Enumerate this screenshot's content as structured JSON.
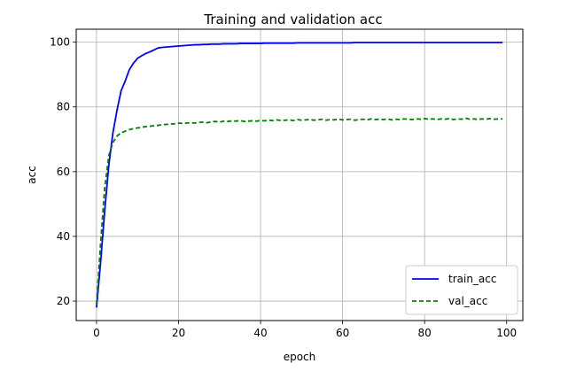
{
  "chart_data": {
    "type": "line",
    "title": "Training and validation acc",
    "xlabel": "epoch",
    "ylabel": "acc",
    "xlim": [
      -4.95,
      103.95
    ],
    "ylim": [
      14,
      104
    ],
    "xticks": [
      0,
      20,
      40,
      60,
      80,
      100
    ],
    "yticks": [
      20,
      40,
      60,
      80,
      100
    ],
    "x_tick_labels": [
      "0",
      "20",
      "40",
      "60",
      "80",
      "100"
    ],
    "y_tick_labels": [
      "20",
      "40",
      "60",
      "80",
      "100"
    ],
    "grid": true,
    "legend_position": "lower-right",
    "series": [
      {
        "name": "train_acc",
        "color": "#0000ff",
        "style": "solid",
        "x": [
          0,
          1,
          2,
          3,
          4,
          5,
          6,
          7,
          8,
          9,
          10,
          11,
          12,
          13,
          14,
          15,
          16,
          17,
          18,
          19,
          20,
          21,
          22,
          23,
          24,
          25,
          26,
          27,
          28,
          29,
          30,
          31,
          32,
          33,
          34,
          35,
          36,
          37,
          38,
          39,
          40,
          41,
          42,
          43,
          44,
          45,
          46,
          47,
          48,
          49,
          50,
          51,
          52,
          53,
          54,
          55,
          56,
          57,
          58,
          59,
          60,
          61,
          62,
          63,
          64,
          65,
          66,
          67,
          68,
          69,
          70,
          71,
          72,
          73,
          74,
          75,
          76,
          77,
          78,
          79,
          80,
          81,
          82,
          83,
          84,
          85,
          86,
          87,
          88,
          89,
          90,
          91,
          92,
          93,
          94,
          95,
          96,
          97,
          98,
          99
        ],
        "values": [
          18,
          32,
          48,
          62,
          72,
          79,
          85,
          88,
          91.5,
          93.5,
          95,
          95.8,
          96.5,
          97,
          97.6,
          98.2,
          98.4,
          98.5,
          98.6,
          98.7,
          98.8,
          98.9,
          99,
          99.1,
          99.2,
          99.2,
          99.3,
          99.3,
          99.4,
          99.4,
          99.4,
          99.5,
          99.5,
          99.5,
          99.5,
          99.6,
          99.6,
          99.6,
          99.6,
          99.6,
          99.6,
          99.7,
          99.7,
          99.7,
          99.7,
          99.7,
          99.7,
          99.7,
          99.7,
          99.8,
          99.8,
          99.8,
          99.8,
          99.8,
          99.8,
          99.8,
          99.8,
          99.8,
          99.8,
          99.8,
          99.8,
          99.8,
          99.8,
          99.9,
          99.9,
          99.9,
          99.9,
          99.9,
          99.9,
          99.9,
          99.9,
          99.9,
          99.9,
          99.9,
          99.9,
          99.9,
          99.9,
          99.9,
          99.9,
          99.9,
          99.9,
          99.9,
          99.9,
          99.9,
          99.9,
          99.9,
          99.9,
          99.9,
          99.9,
          99.9,
          99.9,
          99.9,
          99.9,
          99.9,
          99.9,
          99.9,
          99.9,
          99.9,
          99.9,
          99.9
        ]
      },
      {
        "name": "val_acc",
        "color": "#008000",
        "style": "dashed",
        "x": [
          0,
          1,
          2,
          3,
          4,
          5,
          6,
          7,
          8,
          9,
          10,
          11,
          12,
          13,
          14,
          15,
          16,
          17,
          18,
          19,
          20,
          21,
          22,
          23,
          24,
          25,
          26,
          27,
          28,
          29,
          30,
          31,
          32,
          33,
          34,
          35,
          36,
          37,
          38,
          39,
          40,
          41,
          42,
          43,
          44,
          45,
          46,
          47,
          48,
          49,
          50,
          51,
          52,
          53,
          54,
          55,
          56,
          57,
          58,
          59,
          60,
          61,
          62,
          63,
          64,
          65,
          66,
          67,
          68,
          69,
          70,
          71,
          72,
          73,
          74,
          75,
          76,
          77,
          78,
          79,
          80,
          81,
          82,
          83,
          84,
          85,
          86,
          87,
          88,
          89,
          90,
          91,
          92,
          93,
          94,
          95,
          96,
          97,
          98,
          99
        ],
        "values": [
          19,
          38,
          55,
          65,
          69,
          71,
          72,
          72.5,
          73,
          73.3,
          73.5,
          73.7,
          73.9,
          74,
          74.2,
          74.3,
          74.5,
          74.6,
          74.7,
          74.8,
          75,
          74.9,
          75,
          75.1,
          75,
          75.2,
          75.3,
          75.1,
          75.4,
          75.5,
          75.3,
          75.6,
          75.5,
          75.7,
          75.6,
          75.8,
          75.5,
          75.6,
          75.7,
          75.6,
          75.8,
          75.7,
          75.9,
          75.8,
          76,
          75.8,
          75.9,
          76,
          75.8,
          76.1,
          75.9,
          76,
          76.1,
          75.9,
          76,
          76.2,
          75.9,
          76.1,
          76,
          76.2,
          76,
          76.1,
          76.2,
          75.9,
          76.1,
          76.2,
          76,
          76.3,
          76.1,
          76.2,
          76.1,
          76.3,
          76,
          76.2,
          76.1,
          76.3,
          76.2,
          76.1,
          76.3,
          76.2,
          76.4,
          76.2,
          76.3,
          76.1,
          76.3,
          76.2,
          76.4,
          76.1,
          76.3,
          76.2,
          76.5,
          76.2,
          76.3,
          76.1,
          76.3,
          76.2,
          76.4,
          76.2,
          76.3,
          76.3
        ]
      }
    ]
  }
}
